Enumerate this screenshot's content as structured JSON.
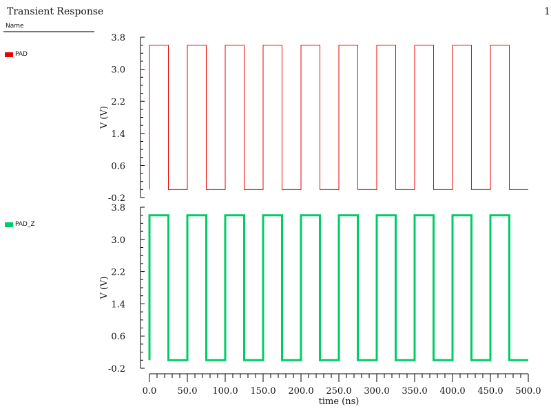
{
  "header": {
    "title": "Transient Response",
    "page_number": "1"
  },
  "legend_panel": {
    "header": "Name"
  },
  "signals": [
    {
      "name": "PAD",
      "color": "#ee0000"
    },
    {
      "name": "PAD_Z",
      "color": "#00cc66"
    }
  ],
  "chart_data": [
    {
      "type": "line",
      "title": "Transient Response",
      "series": [
        {
          "name": "PAD",
          "color": "#ee0000",
          "x": [
            0,
            0,
            25,
            25,
            50,
            50,
            75,
            75,
            100,
            100,
            125,
            125,
            150,
            150,
            175,
            175,
            200,
            200,
            225,
            225,
            250,
            250,
            275,
            275,
            300,
            300,
            325,
            325,
            350,
            350,
            375,
            375,
            400,
            400,
            425,
            425,
            450,
            450,
            475,
            475,
            500
          ],
          "y": [
            0,
            3.6,
            3.6,
            0,
            0,
            3.6,
            3.6,
            0,
            0,
            3.6,
            3.6,
            0,
            0,
            3.6,
            3.6,
            0,
            0,
            3.6,
            3.6,
            0,
            0,
            3.6,
            3.6,
            0,
            0,
            3.6,
            3.6,
            0,
            0,
            3.6,
            3.6,
            0,
            0,
            3.6,
            3.6,
            0,
            0,
            3.6,
            3.6,
            0,
            0
          ]
        }
      ],
      "xlabel": "time (ns)",
      "ylabel": "V (V)",
      "xlim": [
        0,
        500
      ],
      "ylim": [
        -0.2,
        3.8
      ],
      "yticks": [
        "3.8",
        "3.0",
        "2.2",
        "1.4",
        "0.6",
        "-0.2"
      ],
      "grid": false
    },
    {
      "type": "line",
      "series": [
        {
          "name": "PAD_Z",
          "color": "#00cc66",
          "x": [
            0,
            0,
            25,
            25,
            50,
            50,
            75,
            75,
            100,
            100,
            125,
            125,
            150,
            150,
            175,
            175,
            200,
            200,
            225,
            225,
            250,
            250,
            275,
            275,
            300,
            300,
            325,
            325,
            350,
            350,
            375,
            375,
            400,
            400,
            425,
            425,
            450,
            450,
            475,
            475,
            500
          ],
          "y": [
            0,
            3.6,
            3.6,
            0,
            0,
            3.6,
            3.6,
            0,
            0,
            3.6,
            3.6,
            0,
            0,
            3.6,
            3.6,
            0,
            0,
            3.6,
            3.6,
            0,
            0,
            3.6,
            3.6,
            0,
            0,
            3.6,
            3.6,
            0,
            0,
            3.6,
            3.6,
            0,
            0,
            3.6,
            3.6,
            0,
            0,
            3.6,
            3.6,
            0,
            0
          ]
        }
      ],
      "xlabel": "time (ns)",
      "ylabel": "V (V)",
      "xlim": [
        0,
        500
      ],
      "ylim": [
        -0.2,
        3.8
      ],
      "yticks": [
        "3.8",
        "3.0",
        "2.2",
        "1.4",
        "0.6",
        "-0.2"
      ],
      "xticks": [
        "0.0",
        "50.0",
        "100.0",
        "150.0",
        "200.0",
        "250.0",
        "300.0",
        "350.0",
        "400.0",
        "450.0",
        "500.0"
      ],
      "grid": false
    }
  ]
}
